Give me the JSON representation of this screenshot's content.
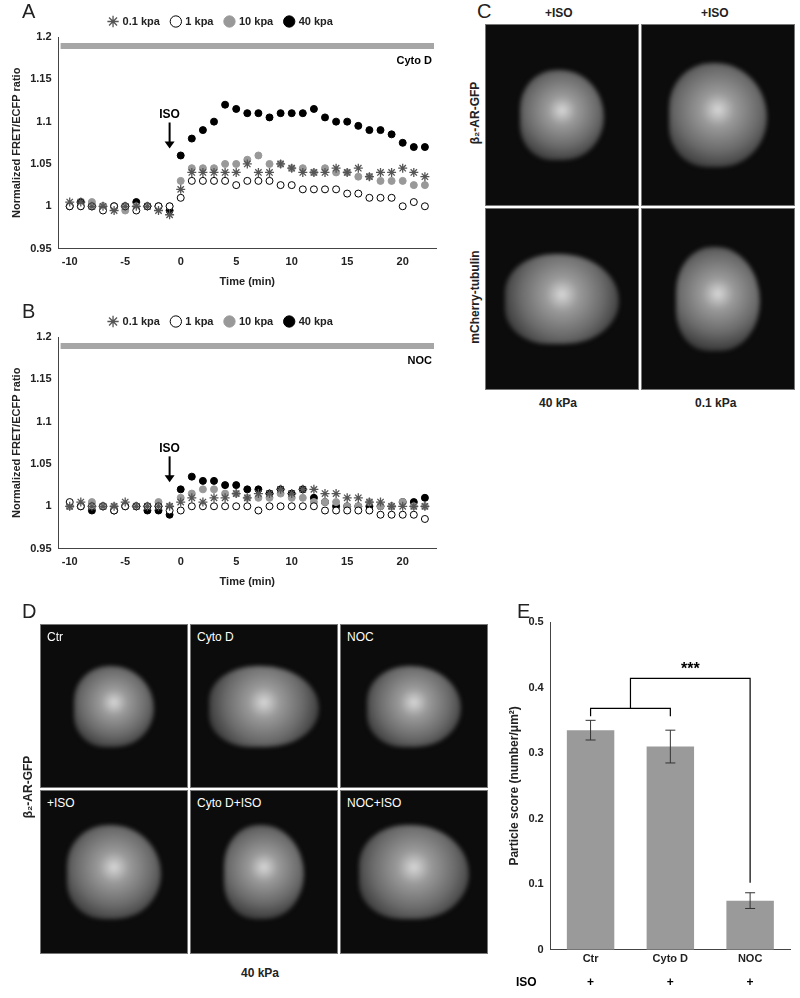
{
  "chart_data": [
    {
      "panel": "A",
      "type": "line",
      "x": [
        -10,
        -9,
        -8,
        -7,
        -6,
        -5,
        -4,
        -3,
        -2,
        -1,
        0,
        1,
        2,
        3,
        4,
        5,
        6,
        7,
        8,
        9,
        10,
        11,
        12,
        13,
        14,
        15,
        16,
        17,
        18,
        19,
        20,
        21,
        22
      ],
      "series": [
        {
          "name": "0.1 kpa",
          "color": "#555555",
          "marker": "star",
          "values": [
            1.005,
            1.005,
            1.0,
            1.0,
            0.995,
            1.0,
            1.0,
            1.0,
            0.995,
            0.99,
            1.02,
            1.04,
            1.04,
            1.04,
            1.04,
            1.04,
            1.05,
            1.04,
            1.04,
            1.05,
            1.045,
            1.04,
            1.04,
            1.04,
            1.045,
            1.04,
            1.045,
            1.035,
            1.04,
            1.04,
            1.045,
            1.04,
            1.035
          ]
        },
        {
          "name": "1 kpa",
          "color": "#000000",
          "marker": "circle_open",
          "values": [
            1.0,
            1.0,
            1.0,
            0.995,
            1.0,
            1.0,
            0.995,
            1.0,
            1.0,
            1.0,
            1.01,
            1.03,
            1.03,
            1.03,
            1.03,
            1.025,
            1.03,
            1.03,
            1.03,
            1.025,
            1.025,
            1.02,
            1.02,
            1.02,
            1.02,
            1.015,
            1.015,
            1.01,
            1.01,
            1.01,
            1.0,
            1.005,
            1.0
          ]
        },
        {
          "name": "10 kpa",
          "color": "#999999",
          "marker": "circle",
          "values": [
            1.0,
            1.0,
            1.005,
            1.0,
            1.0,
            0.995,
            1.0,
            1.0,
            1.0,
            1.0,
            1.03,
            1.045,
            1.045,
            1.045,
            1.05,
            1.05,
            1.055,
            1.06,
            1.05,
            1.05,
            1.045,
            1.045,
            1.04,
            1.045,
            1.04,
            1.04,
            1.035,
            1.035,
            1.03,
            1.03,
            1.03,
            1.025,
            1.025
          ]
        },
        {
          "name": "40 kpa",
          "color": "#000000",
          "marker": "circle",
          "values": [
            1.0,
            1.005,
            1.0,
            1.0,
            1.0,
            1.0,
            1.005,
            1.0,
            1.0,
            0.995,
            1.06,
            1.08,
            1.09,
            1.1,
            1.12,
            1.115,
            1.11,
            1.11,
            1.105,
            1.11,
            1.11,
            1.11,
            1.115,
            1.105,
            1.1,
            1.1,
            1.095,
            1.09,
            1.09,
            1.085,
            1.075,
            1.07,
            1.07
          ]
        }
      ],
      "x_label": "Time (min)",
      "y_label": "Normalized FRET/ECFP ratio",
      "xlim": [
        -11,
        23
      ],
      "xticks": [
        -10,
        -5,
        0,
        5,
        10,
        15,
        20
      ],
      "ylim": [
        0.95,
        1.2
      ],
      "yticks": [
        0.95,
        1,
        1.05,
        1.1,
        1.15,
        1.2
      ],
      "grid": false,
      "legend": "top",
      "annotations": [
        {
          "text": "ISO",
          "x": -1
        },
        {
          "text": "Cyto D"
        }
      ]
    },
    {
      "panel": "B",
      "type": "line",
      "x": [
        -10,
        -9,
        -8,
        -7,
        -6,
        -5,
        -4,
        -3,
        -2,
        -1,
        0,
        1,
        2,
        3,
        4,
        5,
        6,
        7,
        8,
        9,
        10,
        11,
        12,
        13,
        14,
        15,
        16,
        17,
        18,
        19,
        20,
        21,
        22
      ],
      "series": [
        {
          "name": "0.1 kpa",
          "color": "#555555",
          "marker": "star",
          "values": [
            1.0,
            1.005,
            1.0,
            1.0,
            1.0,
            1.005,
            1.0,
            1.0,
            1.0,
            1.0,
            1.005,
            1.01,
            1.005,
            1.01,
            1.01,
            1.015,
            1.01,
            1.015,
            1.015,
            1.02,
            1.015,
            1.02,
            1.02,
            1.015,
            1.015,
            1.01,
            1.01,
            1.005,
            1.005,
            1.0,
            1.0,
            1.0,
            1.0
          ]
        },
        {
          "name": "1 kpa",
          "color": "#000000",
          "marker": "circle_open",
          "values": [
            1.005,
            1.0,
            1.0,
            1.0,
            0.995,
            1.0,
            1.0,
            1.0,
            1.0,
            0.995,
            0.995,
            1.0,
            1.0,
            1.0,
            1.0,
            1.0,
            1.0,
            0.995,
            1.0,
            1.0,
            1.0,
            1.0,
            1.0,
            0.995,
            0.995,
            0.995,
            0.995,
            0.995,
            0.99,
            0.99,
            0.99,
            0.99,
            0.985
          ]
        },
        {
          "name": "10 kpa",
          "color": "#999999",
          "marker": "circle",
          "values": [
            1.0,
            1.0,
            1.005,
            1.0,
            1.0,
            1.0,
            1.0,
            1.0,
            1.005,
            1.0,
            1.01,
            1.015,
            1.02,
            1.02,
            1.015,
            1.015,
            1.01,
            1.01,
            1.01,
            1.015,
            1.01,
            1.01,
            1.005,
            1.005,
            1.005,
            1.0,
            1.0,
            1.005,
            1.0,
            1.0,
            1.005,
            1.0,
            1.0
          ]
        },
        {
          "name": "40 kpa",
          "color": "#000000",
          "marker": "circle",
          "values": [
            1.0,
            1.0,
            0.995,
            1.0,
            0.995,
            1.0,
            1.0,
            0.995,
            0.995,
            0.99,
            1.02,
            1.035,
            1.03,
            1.03,
            1.025,
            1.025,
            1.02,
            1.02,
            1.015,
            1.02,
            1.015,
            1.02,
            1.01,
            1.005,
            1.0,
            1.0,
            1.0,
            1.0,
            1.0,
            1.0,
            1.005,
            1.005,
            1.01
          ]
        }
      ],
      "x_label": "Time (min)",
      "y_label": "Normalized FRET/ECFP ratio",
      "xlim": [
        -11,
        23
      ],
      "xticks": [
        -10,
        -5,
        0,
        5,
        10,
        15,
        20
      ],
      "ylim": [
        0.95,
        1.2
      ],
      "yticks": [
        0.95,
        1,
        1.05,
        1.1,
        1.15,
        1.2
      ],
      "grid": false,
      "legend": "top",
      "annotations": [
        {
          "text": "ISO",
          "x": -1
        },
        {
          "text": "NOC"
        }
      ]
    },
    {
      "panel": "E",
      "type": "bar",
      "categories": [
        "Ctr",
        "Cyto D",
        "NOC"
      ],
      "values": [
        0.335,
        0.31,
        0.075
      ],
      "errors": [
        0.015,
        0.025,
        0.012
      ],
      "color": "#9a9a9a",
      "y_label": "Particle score (number/μm²)",
      "ylim": [
        0,
        0.5
      ],
      "yticks": [
        0,
        0.1,
        0.2,
        0.3,
        0.4,
        0.5
      ],
      "grid": false,
      "annotations": [
        {
          "text": "ISO",
          "row": [
            "+",
            "+",
            "+"
          ]
        },
        {
          "text": "***"
        }
      ]
    }
  ],
  "images": [
    {
      "panel": "C",
      "columns": [
        "+ISO",
        "+ISO"
      ],
      "rows": [
        "β₂-AR-GFP",
        "mCherry-tubulin"
      ],
      "footer": [
        "40 kPa",
        "0.1 kPa"
      ]
    },
    {
      "panel": "D",
      "cells": [
        [
          "Ctr",
          "Cyto D",
          "NOC"
        ],
        [
          "+ISO",
          "Cyto D+ISO",
          "NOC+ISO"
        ]
      ],
      "row_label": "β₂-AR-GFP",
      "footer": "40 kPa"
    }
  ]
}
